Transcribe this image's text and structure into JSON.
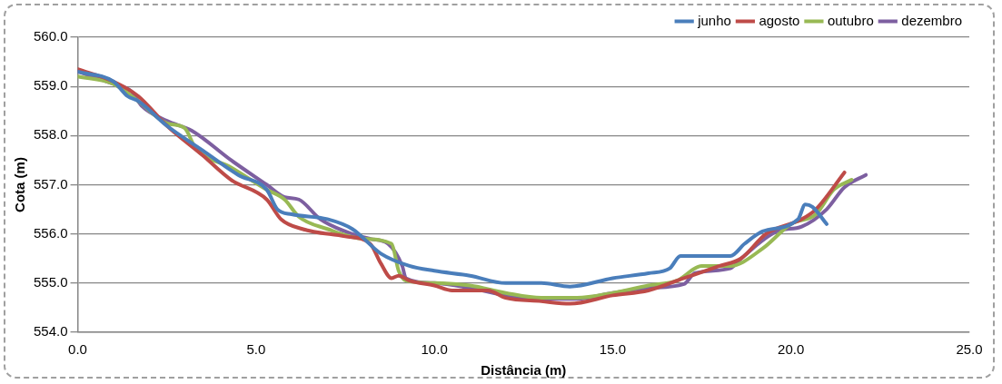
{
  "chart_data": {
    "type": "line",
    "xlabel": "Distância (m)",
    "ylabel": "Cota (m)",
    "xlim": [
      0,
      25
    ],
    "ylim": [
      554,
      560
    ],
    "xticks": [
      {
        "value": 0,
        "label": "0.0"
      },
      {
        "value": 5,
        "label": "5.0"
      },
      {
        "value": 10,
        "label": "10.0"
      },
      {
        "value": 15,
        "label": "15.0"
      },
      {
        "value": 20,
        "label": "20.0"
      },
      {
        "value": 25,
        "label": "25.0"
      }
    ],
    "yticks": [
      {
        "value": 554,
        "label": "554.0"
      },
      {
        "value": 555,
        "label": "555.0"
      },
      {
        "value": 556,
        "label": "556.0"
      },
      {
        "value": 557,
        "label": "557.0"
      },
      {
        "value": 558,
        "label": "558.0"
      },
      {
        "value": 559,
        "label": "559.0"
      },
      {
        "value": 560,
        "label": "560.0"
      }
    ],
    "grid": "y",
    "legend": "top right",
    "marker": "none",
    "line_style": "solid",
    "series": [
      {
        "name": "junho",
        "color": "#4a7ebb",
        "x": [
          0,
          1,
          1.4,
          1.7,
          2.5,
          3.5,
          4.5,
          5.3,
          5.6,
          6,
          7,
          7.7,
          8.5,
          9.3,
          10,
          11,
          12,
          13,
          13.8,
          15,
          16,
          16.6,
          16.9,
          18.3,
          18.7,
          19.2,
          20.2,
          20.4,
          20.6,
          21
        ],
        "values": [
          559.3,
          559.1,
          558.8,
          558.7,
          558.2,
          557.7,
          557.2,
          556.9,
          556.5,
          556.4,
          556.3,
          556.1,
          555.6,
          555.35,
          555.25,
          555.15,
          555,
          555,
          554.93,
          555.1,
          555.2,
          555.3,
          555.55,
          555.55,
          555.8,
          556.05,
          556.3,
          556.6,
          556.55,
          556.2
        ]
      },
      {
        "name": "agosto",
        "color": "#be4b48",
        "x": [
          0,
          1,
          1.7,
          2.5,
          3.5,
          4.3,
          5.3,
          5.7,
          6.3,
          7.5,
          8.2,
          8.5,
          8.8,
          9,
          9.3,
          10,
          10.5,
          11.5,
          12,
          13,
          13.8,
          15,
          16,
          17,
          18,
          18.6,
          19.3,
          20.3,
          20.7,
          21.5
        ],
        "values": [
          559.35,
          559.1,
          558.8,
          558.2,
          557.6,
          557.1,
          556.7,
          556.3,
          556.1,
          555.95,
          555.8,
          555.4,
          555.1,
          555.15,
          555.05,
          554.95,
          554.85,
          554.85,
          554.7,
          554.63,
          554.58,
          554.75,
          554.85,
          555.1,
          555.35,
          555.5,
          556,
          556.3,
          556.5,
          557.25
        ]
      },
      {
        "name": "outubro",
        "color": "#98b954",
        "x": [
          0,
          1,
          1.7,
          2.5,
          3,
          3.3,
          4.3,
          5.3,
          5.8,
          6.2,
          7,
          8,
          8.8,
          9,
          9.2,
          10,
          11,
          12,
          13,
          14,
          15,
          16,
          16.8,
          17.5,
          18.3,
          19.2,
          20,
          20.7,
          21.2,
          21.7
        ],
        "values": [
          559.2,
          559.05,
          558.7,
          558.25,
          558.15,
          557.75,
          557.35,
          556.9,
          556.7,
          556.35,
          556.1,
          555.9,
          555.8,
          555.25,
          555.05,
          555,
          554.95,
          554.8,
          554.7,
          554.7,
          554.8,
          554.95,
          555.05,
          555.35,
          555.35,
          555.7,
          556.2,
          556.4,
          556.9,
          557.1
        ]
      },
      {
        "name": "dezembro",
        "color": "#7d5fa0",
        "x": [
          0,
          1,
          1.5,
          1.8,
          2.5,
          3.2,
          4.3,
          5.3,
          5.8,
          6.2,
          6.8,
          7.5,
          8.2,
          8.7,
          9.1,
          9.2,
          10,
          11,
          12,
          13,
          14,
          15,
          16,
          17,
          17.3,
          18.3,
          18.6,
          19.6,
          20.3,
          21,
          21.5,
          22.1
        ],
        "values": [
          559.3,
          559.05,
          558.9,
          558.6,
          558.3,
          558.1,
          557.5,
          557,
          556.75,
          556.7,
          556.3,
          556.05,
          555.9,
          555.8,
          555.35,
          555.1,
          555,
          554.9,
          554.75,
          554.68,
          554.68,
          554.8,
          554.9,
          554.98,
          555.2,
          555.3,
          555.5,
          556.05,
          556.15,
          556.5,
          556.95,
          557.2
        ]
      }
    ]
  }
}
